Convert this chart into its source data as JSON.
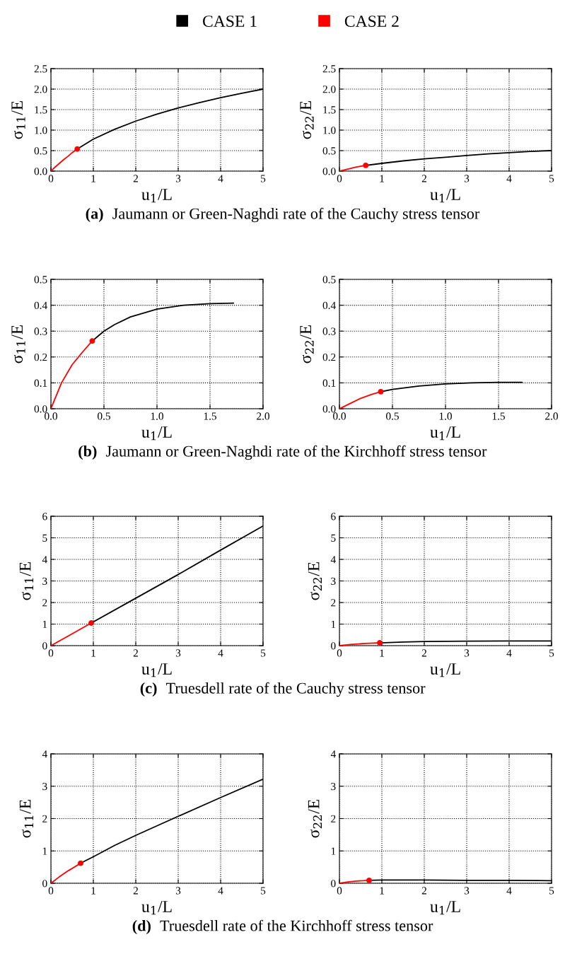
{
  "chart_data": [
    {
      "type": "line",
      "xlabel": "u$_{1}$/L",
      "ylabel": "σ$_{11}$/E",
      "xlim": [
        0,
        5
      ],
      "ylim": [
        0,
        2.5
      ],
      "xticks": [
        0,
        1,
        2,
        3,
        4,
        5
      ],
      "yticks": [
        {
          "value": 0,
          "label": "0.0"
        },
        0.5,
        {
          "value": 1,
          "label": "1.0"
        },
        1.5,
        {
          "value": 2,
          "label": "2.0"
        },
        2.5
      ],
      "grid": true,
      "legend": "top",
      "annotations": [
        "(a)",
        "Jaumann or Green-Naghdi rate of the Cauchy stress tensor"
      ],
      "series": [
        {
          "name": "CASE 1",
          "color": "#000000",
          "x": [
            0.62,
            1,
            1.5,
            2,
            2.5,
            3,
            3.5,
            4,
            4.5,
            5
          ],
          "values": [
            0.54,
            0.78,
            1.02,
            1.22,
            1.39,
            1.54,
            1.67,
            1.79,
            1.9,
            2.0
          ]
        },
        {
          "name": "CASE 2",
          "color": "#ff0000",
          "x": [
            0,
            0.1,
            0.2,
            0.3,
            0.4,
            0.5,
            0.62
          ],
          "values": [
            0,
            0.1,
            0.19,
            0.28,
            0.36,
            0.45,
            0.54
          ]
        },
        {
          "type": "scatter",
          "marker": "circle",
          "color": "#ff0000",
          "x": [
            0.62
          ],
          "values": [
            0.54
          ]
        }
      ]
    },
    {
      "type": "line",
      "xlabel": "u$_{1}$/L",
      "ylabel": "σ$_{22}$/E",
      "xlim": [
        0,
        5
      ],
      "ylim": [
        0,
        2.5
      ],
      "xticks": [
        0,
        1,
        2,
        3,
        4,
        5
      ],
      "yticks": [
        {
          "value": 0,
          "label": "0.0"
        },
        0.5,
        {
          "value": 1,
          "label": "1.0"
        },
        1.5,
        {
          "value": 2,
          "label": "2.0"
        },
        2.5
      ],
      "grid": true,
      "series": [
        {
          "color": "#000000",
          "x": [
            0.62,
            1,
            1.5,
            2,
            2.5,
            3,
            3.5,
            4,
            4.5,
            5
          ],
          "values": [
            0.14,
            0.19,
            0.25,
            0.3,
            0.34,
            0.38,
            0.42,
            0.45,
            0.48,
            0.5
          ]
        },
        {
          "color": "#ff0000",
          "x": [
            0,
            0.2,
            0.4,
            0.62
          ],
          "values": [
            0,
            0.05,
            0.1,
            0.14
          ]
        },
        {
          "type": "scatter",
          "marker": "circle",
          "color": "#ff0000",
          "x": [
            0.62
          ],
          "values": [
            0.14
          ]
        }
      ]
    },
    {
      "type": "line",
      "xlabel": "u$_{1}$/L",
      "ylabel": "σ$_{11}$/E",
      "xlim": [
        0,
        2
      ],
      "ylim": [
        0,
        0.5
      ],
      "xticks": [
        {
          "value": 0,
          "label": "0.0"
        },
        0.5,
        {
          "value": 1,
          "label": "1.0"
        },
        1.5,
        {
          "value": 2,
          "label": "2.0"
        }
      ],
      "yticks": [
        {
          "value": 0,
          "label": "0.0"
        },
        0.1,
        0.2,
        0.3,
        0.4,
        0.5
      ],
      "grid": true,
      "annotations": [
        "(b)",
        "Jaumann or Green-Naghdi rate of the Kirchhoff stress tensor"
      ],
      "series": [
        {
          "color": "#000000",
          "x": [
            0.39,
            0.5,
            0.6,
            0.75,
            1.0,
            1.25,
            1.5,
            1.72
          ],
          "values": [
            0.262,
            0.3,
            0.325,
            0.355,
            0.385,
            0.4,
            0.406,
            0.408
          ]
        },
        {
          "color": "#ff0000",
          "x": [
            0,
            0.1,
            0.2,
            0.3,
            0.39
          ],
          "values": [
            0,
            0.1,
            0.17,
            0.22,
            0.262
          ]
        },
        {
          "type": "scatter",
          "marker": "circle",
          "color": "#ff0000",
          "x": [
            0.39
          ],
          "values": [
            0.262
          ]
        }
      ]
    },
    {
      "type": "line",
      "xlabel": "u$_{1}$/L",
      "ylabel": "σ$_{22}$/E",
      "xlim": [
        0,
        2
      ],
      "ylim": [
        0,
        0.5
      ],
      "xticks": [
        {
          "value": 0,
          "label": "0.0"
        },
        0.5,
        {
          "value": 1,
          "label": "1.0"
        },
        1.5,
        {
          "value": 2,
          "label": "2.0"
        }
      ],
      "yticks": [
        {
          "value": 0,
          "label": "0.0"
        },
        0.1,
        0.2,
        0.3,
        0.4,
        0.5
      ],
      "grid": true,
      "series": [
        {
          "color": "#000000",
          "x": [
            0.39,
            0.5,
            0.75,
            1.0,
            1.25,
            1.5,
            1.72
          ],
          "values": [
            0.066,
            0.075,
            0.088,
            0.096,
            0.1,
            0.102,
            0.102
          ]
        },
        {
          "color": "#ff0000",
          "x": [
            0,
            0.1,
            0.2,
            0.3,
            0.39
          ],
          "values": [
            0,
            0.02,
            0.04,
            0.055,
            0.066
          ]
        },
        {
          "type": "scatter",
          "marker": "circle",
          "color": "#ff0000",
          "x": [
            0.39
          ],
          "values": [
            0.066
          ]
        }
      ]
    },
    {
      "type": "line",
      "xlabel": "u$_{1}$/L",
      "ylabel": "σ$_{11}$/E",
      "xlim": [
        0,
        5
      ],
      "ylim": [
        0,
        6
      ],
      "xticks": [
        0,
        1,
        2,
        3,
        4,
        5
      ],
      "yticks": [
        0,
        1,
        2,
        3,
        4,
        5,
        6
      ],
      "grid": true,
      "annotations": [
        "(c)",
        "Truesdell rate of the Cauchy stress tensor"
      ],
      "series": [
        {
          "color": "#000000",
          "x": [
            0.95,
            2,
            3,
            4,
            5
          ],
          "values": [
            1.05,
            2.2,
            3.3,
            4.43,
            5.55
          ]
        },
        {
          "color": "#ff0000",
          "x": [
            0,
            0.5,
            0.95
          ],
          "values": [
            0,
            0.55,
            1.05
          ]
        },
        {
          "type": "scatter",
          "marker": "circle",
          "color": "#ff0000",
          "x": [
            0.95
          ],
          "values": [
            1.05
          ]
        }
      ]
    },
    {
      "type": "line",
      "xlabel": "u$_{1}$/L",
      "ylabel": "σ$_{22}$/E",
      "xlim": [
        0,
        5
      ],
      "ylim": [
        0,
        6
      ],
      "xticks": [
        0,
        1,
        2,
        3,
        4,
        5
      ],
      "yticks": [
        0,
        1,
        2,
        3,
        4,
        5,
        6
      ],
      "grid": true,
      "series": [
        {
          "color": "#000000",
          "x": [
            0.95,
            1.5,
            2,
            3,
            4,
            5
          ],
          "values": [
            0.13,
            0.17,
            0.19,
            0.21,
            0.22,
            0.22
          ]
        },
        {
          "color": "#ff0000",
          "x": [
            0,
            0.3,
            0.6,
            0.95
          ],
          "values": [
            0,
            0.06,
            0.1,
            0.13
          ]
        },
        {
          "type": "scatter",
          "marker": "circle",
          "color": "#ff0000",
          "x": [
            0.95
          ],
          "values": [
            0.13
          ]
        }
      ]
    },
    {
      "type": "line",
      "xlabel": "u$_{1}$/L",
      "ylabel": "σ$_{11}$/E",
      "xlim": [
        0,
        5
      ],
      "ylim": [
        0,
        4
      ],
      "xticks": [
        0,
        1,
        2,
        3,
        4,
        5
      ],
      "yticks": [
        0,
        1,
        2,
        3,
        4
      ],
      "grid": true,
      "annotations": [
        "(d)",
        "Truesdell rate of the Kirchhoff stress tensor"
      ],
      "series": [
        {
          "color": "#000000",
          "x": [
            0.7,
            1,
            1.5,
            2,
            3,
            4,
            5
          ],
          "values": [
            0.62,
            0.82,
            1.17,
            1.48,
            2.07,
            2.65,
            3.22
          ]
        },
        {
          "color": "#ff0000",
          "x": [
            0,
            0.2,
            0.4,
            0.7
          ],
          "values": [
            0,
            0.2,
            0.38,
            0.62
          ]
        },
        {
          "type": "scatter",
          "marker": "circle",
          "color": "#ff0000",
          "x": [
            0.7
          ],
          "values": [
            0.62
          ]
        }
      ]
    },
    {
      "type": "line",
      "xlabel": "u$_{1}$/L",
      "ylabel": "σ$_{22}$/E",
      "xlim": [
        0,
        5
      ],
      "ylim": [
        0,
        4
      ],
      "xticks": [
        0,
        1,
        2,
        3,
        4,
        5
      ],
      "yticks": [
        0,
        1,
        2,
        3,
        4
      ],
      "grid": true,
      "series": [
        {
          "color": "#000000",
          "x": [
            0.7,
            1,
            2,
            3,
            4,
            5
          ],
          "values": [
            0.09,
            0.1,
            0.1,
            0.09,
            0.09,
            0.08
          ]
        },
        {
          "color": "#ff0000",
          "x": [
            0,
            0.2,
            0.4,
            0.7
          ],
          "values": [
            0,
            0.04,
            0.07,
            0.09
          ]
        },
        {
          "type": "scatter",
          "marker": "circle",
          "color": "#ff0000",
          "x": [
            0.7
          ],
          "values": [
            0.09
          ]
        }
      ]
    }
  ]
}
